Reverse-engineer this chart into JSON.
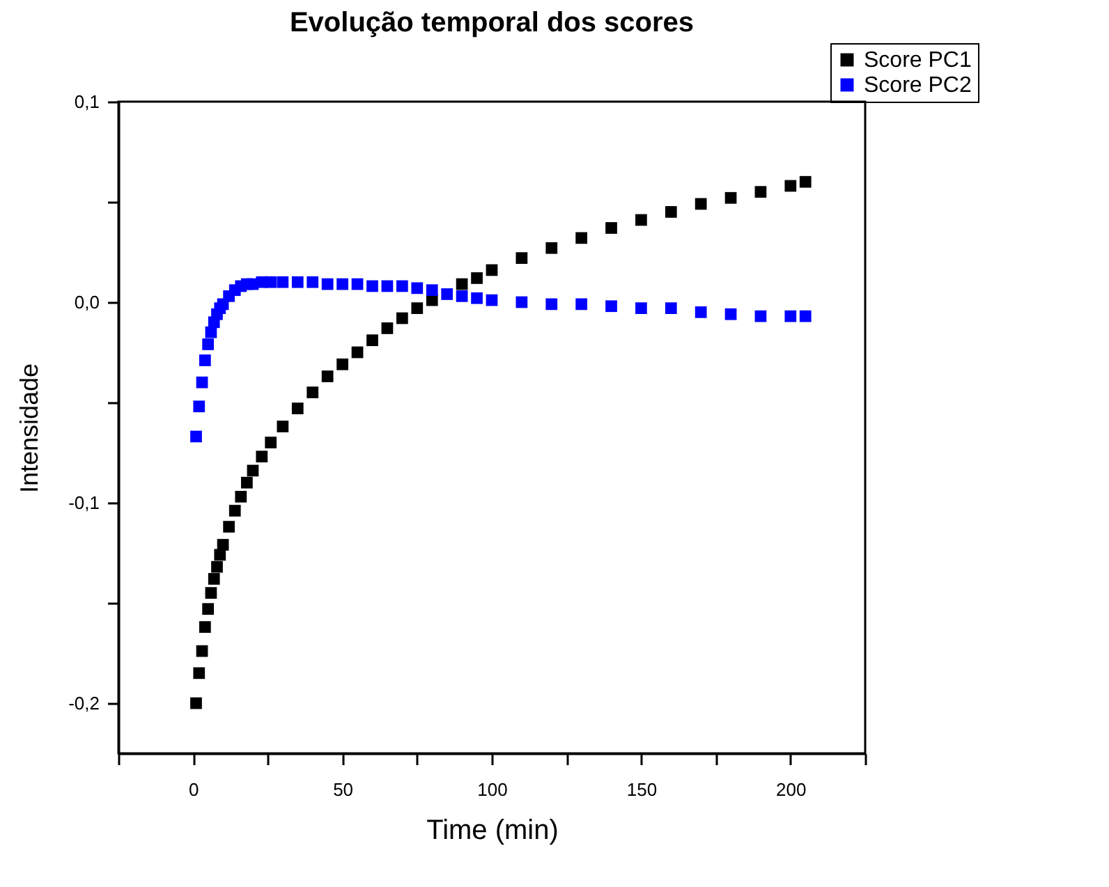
{
  "chart_data": {
    "type": "scatter",
    "title": "Evolução temporal dos scores",
    "xlabel": "Time (min)",
    "ylabel": "Intensidade",
    "x": [
      1,
      2,
      3,
      4,
      5,
      6,
      7,
      8,
      9,
      10,
      12,
      14,
      16,
      18,
      20,
      23,
      26,
      30,
      35,
      40,
      45,
      50,
      55,
      60,
      65,
      70,
      75,
      80,
      85,
      90,
      95,
      100,
      110,
      120,
      130,
      140,
      150,
      160,
      170,
      180,
      190,
      200,
      205
    ],
    "series": [
      {
        "name": "Score PC1",
        "color": "#000000",
        "values": [
          -0.2,
          -0.185,
          -0.174,
          -0.162,
          -0.153,
          -0.145,
          -0.138,
          -0.132,
          -0.126,
          -0.121,
          -0.112,
          -0.104,
          -0.097,
          -0.09,
          -0.084,
          -0.077,
          -0.07,
          -0.062,
          -0.053,
          -0.045,
          -0.037,
          -0.031,
          -0.025,
          -0.019,
          -0.013,
          -0.008,
          -0.003,
          0.001,
          null,
          0.009,
          0.012,
          0.016,
          0.022,
          0.027,
          0.032,
          0.037,
          0.041,
          0.045,
          0.049,
          0.052,
          0.055,
          0.058,
          0.06
        ]
      },
      {
        "name": "Score PC2",
        "color": "#0000ff",
        "values": [
          -0.067,
          -0.052,
          -0.04,
          -0.029,
          -0.021,
          -0.015,
          -0.01,
          -0.006,
          -0.003,
          -0.001,
          0.003,
          0.006,
          0.008,
          0.009,
          0.009,
          0.01,
          0.01,
          0.01,
          0.01,
          0.01,
          0.009,
          0.009,
          0.009,
          0.008,
          0.008,
          0.008,
          0.007,
          0.006,
          0.004,
          0.003,
          0.002,
          0.001,
          0.0,
          -0.001,
          -0.001,
          -0.002,
          -0.003,
          -0.003,
          -0.005,
          -0.006,
          -0.007,
          -0.007,
          -0.007
        ]
      }
    ],
    "xlim": [
      -25,
      225
    ],
    "xticks": [
      {
        "value": -25,
        "label": null
      },
      0,
      {
        "value": 25,
        "label": null
      },
      50,
      {
        "value": 75,
        "label": null
      },
      100,
      {
        "value": 125,
        "label": null
      },
      150,
      {
        "value": 175,
        "label": null
      },
      200,
      {
        "value": 225,
        "label": null
      }
    ],
    "ylim": [
      -0.225,
      0.1
    ],
    "yticks": [
      {
        "value": -0.2,
        "label": "-0,2"
      },
      {
        "value": -0.15,
        "label": null
      },
      {
        "value": -0.1,
        "label": "-0,1"
      },
      {
        "value": -0.05,
        "label": null
      },
      {
        "value": 0,
        "label": "0,0"
      },
      {
        "value": 0.05,
        "label": null
      },
      {
        "value": 0.1,
        "label": "0,1"
      }
    ],
    "marker": "square",
    "legend": "top right",
    "grid": false
  }
}
